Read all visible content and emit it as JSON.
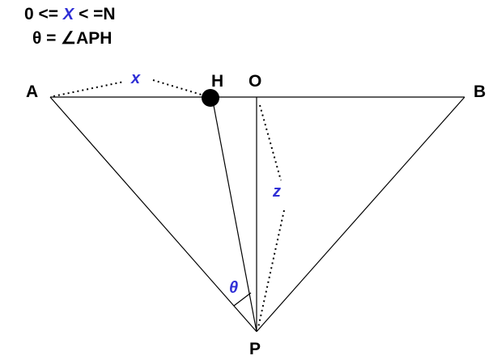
{
  "header": {
    "condition_prefix": "0 <= ",
    "condition_var": "X",
    "condition_suffix": " < =N",
    "theta_def": "θ = ∠APH"
  },
  "points": {
    "a": "A",
    "b": "B",
    "h": "H",
    "o": "O",
    "p": "P"
  },
  "variables": {
    "x": "x",
    "z": "z",
    "theta": "θ"
  },
  "colors": {
    "accent": "#2f2fd6",
    "line": "#000000"
  }
}
